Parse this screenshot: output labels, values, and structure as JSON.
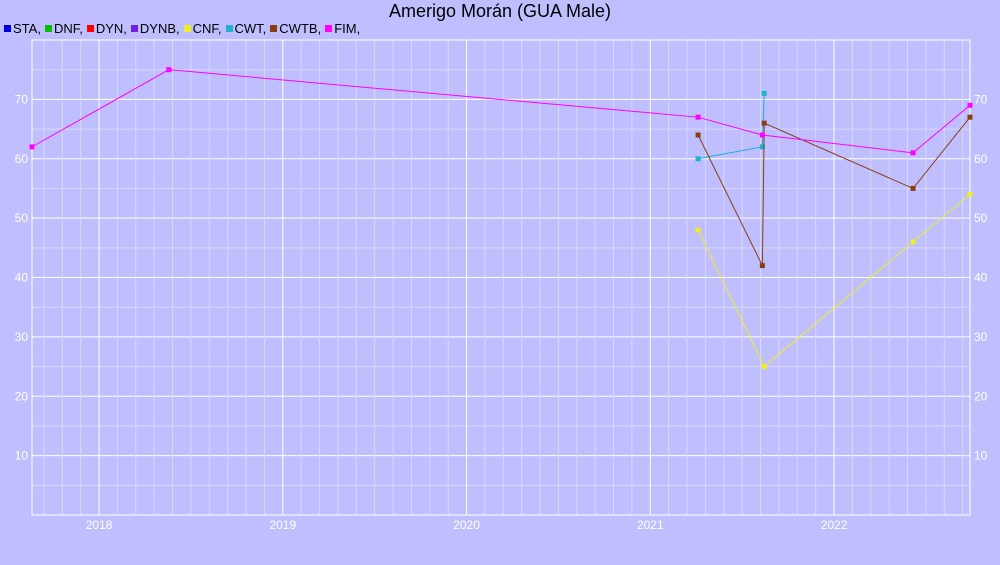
{
  "chart_data": {
    "type": "line",
    "title": "Amerigo Morán (GUA Male)",
    "xlabel": "",
    "ylabel": "",
    "xlim": [
      2017.635,
      2022.74
    ],
    "ylim": [
      0,
      80
    ],
    "grid": true,
    "legend_position": "top-left",
    "x_ticks": [
      "2018",
      "2019",
      "2020",
      "2021",
      "2022"
    ],
    "y_ticks": [
      "10",
      "20",
      "30",
      "40",
      "50",
      "60",
      "70"
    ],
    "series": [
      {
        "name": "STA",
        "color": "#0000dd",
        "points": []
      },
      {
        "name": "DNF",
        "color": "#00c000",
        "points": []
      },
      {
        "name": "DYN",
        "color": "#ff0000",
        "points": []
      },
      {
        "name": "DYNB",
        "color": "#7020e0",
        "points": []
      },
      {
        "name": "CNF",
        "color": "#eeee22",
        "points": [
          [
            2021.26,
            48
          ],
          [
            2021.62,
            25
          ],
          [
            2022.43,
            46
          ],
          [
            2022.74,
            54
          ]
        ]
      },
      {
        "name": "CWT",
        "color": "#20b0d0",
        "points": [
          [
            2021.26,
            60
          ],
          [
            2021.61,
            62
          ],
          [
            2021.62,
            71
          ]
        ]
      },
      {
        "name": "CWTB",
        "color": "#8b3d10",
        "points": [
          [
            2021.26,
            64
          ],
          [
            2021.61,
            42
          ],
          [
            2021.62,
            66
          ],
          [
            2022.43,
            55
          ],
          [
            2022.74,
            67
          ]
        ]
      },
      {
        "name": "FIM",
        "color": "#ff00ff",
        "points": [
          [
            2017.635,
            62
          ],
          [
            2018.38,
            75
          ],
          [
            2021.26,
            67
          ],
          [
            2021.61,
            64
          ],
          [
            2022.43,
            61
          ],
          [
            2022.74,
            69
          ]
        ]
      }
    ]
  }
}
